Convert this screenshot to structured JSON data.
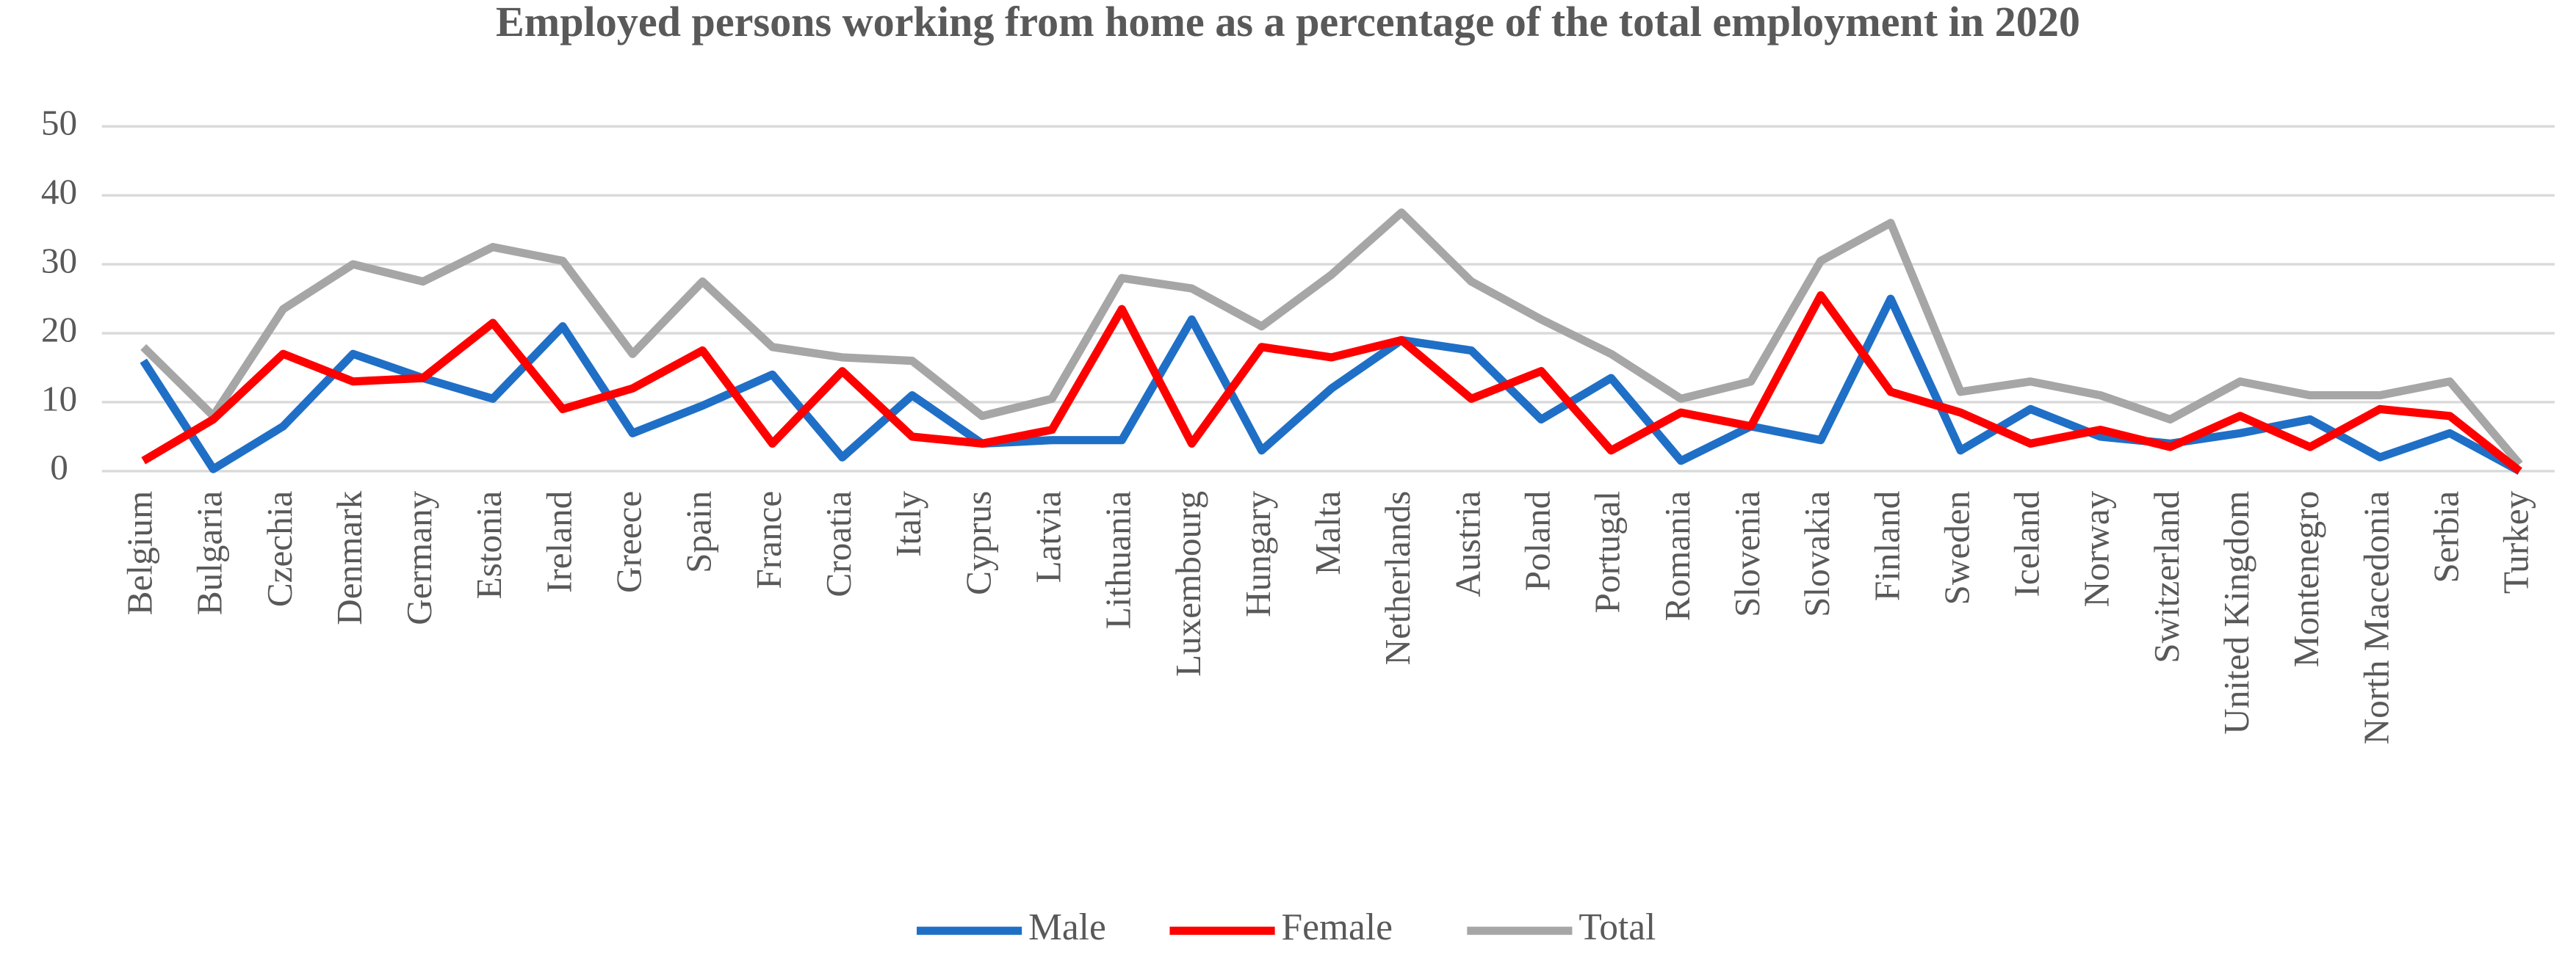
{
  "chart_data": {
    "type": "line",
    "title": "Employed persons working from home as a percentage of the total employment in 2020",
    "categories": [
      "Belgium",
      "Bulgaria",
      "Czechia",
      "Denmark",
      "Germany",
      "Estonia",
      "Ireland",
      "Greece",
      "Spain",
      "France",
      "Croatia",
      "Italy",
      "Cyprus",
      "Latvia",
      "Lithuania",
      "Luxembourg",
      "Hungary",
      "Malta",
      "Netherlands",
      "Austria",
      "Poland",
      "Portugal",
      "Romania",
      "Slovenia",
      "Slovakia",
      "Finland",
      "Sweden",
      "Iceland",
      "Norway",
      "Switzerland",
      "United Kingdom",
      "Montenegro",
      "North Macedonia",
      "Serbia",
      "Turkey"
    ],
    "series": [
      {
        "name": "Male",
        "color": "#1f6fc6",
        "values": [
          16,
          0.3,
          6.5,
          17,
          13.5,
          10.5,
          21,
          5.5,
          9.5,
          14,
          2,
          11,
          4,
          4.5,
          4.5,
          22,
          3,
          12,
          19,
          17.5,
          7.5,
          13.5,
          1.5,
          6.5,
          4.5,
          25,
          3,
          9,
          5,
          4,
          5.5,
          7.5,
          2,
          5.5,
          0
        ]
      },
      {
        "name": "Female",
        "color": "#ff0000",
        "values": [
          1.5,
          7.5,
          17,
          13,
          13.5,
          21.5,
          9,
          12,
          17.5,
          4,
          14.5,
          5,
          4,
          6,
          23.5,
          4,
          18,
          16.5,
          19,
          10.5,
          14.5,
          3,
          8.5,
          6.5,
          25.5,
          11.5,
          8.5,
          4,
          6,
          3.5,
          8,
          3.5,
          9,
          8,
          0
        ]
      },
      {
        "name": "Total",
        "color": "#a6a6a6",
        "values": [
          18,
          8,
          23.5,
          30,
          27.5,
          32.5,
          30.5,
          17,
          27.5,
          18,
          16.5,
          16,
          8,
          10.5,
          28,
          26.5,
          21,
          28.5,
          37.5,
          27.5,
          22,
          17,
          10.5,
          13,
          30.5,
          36,
          11.5,
          13,
          11,
          7.5,
          13,
          11,
          11,
          13,
          1
        ]
      }
    ],
    "ylim": [
      0,
      50
    ],
    "yticks": [
      0,
      10,
      20,
      30,
      40,
      50
    ],
    "grid": true
  }
}
